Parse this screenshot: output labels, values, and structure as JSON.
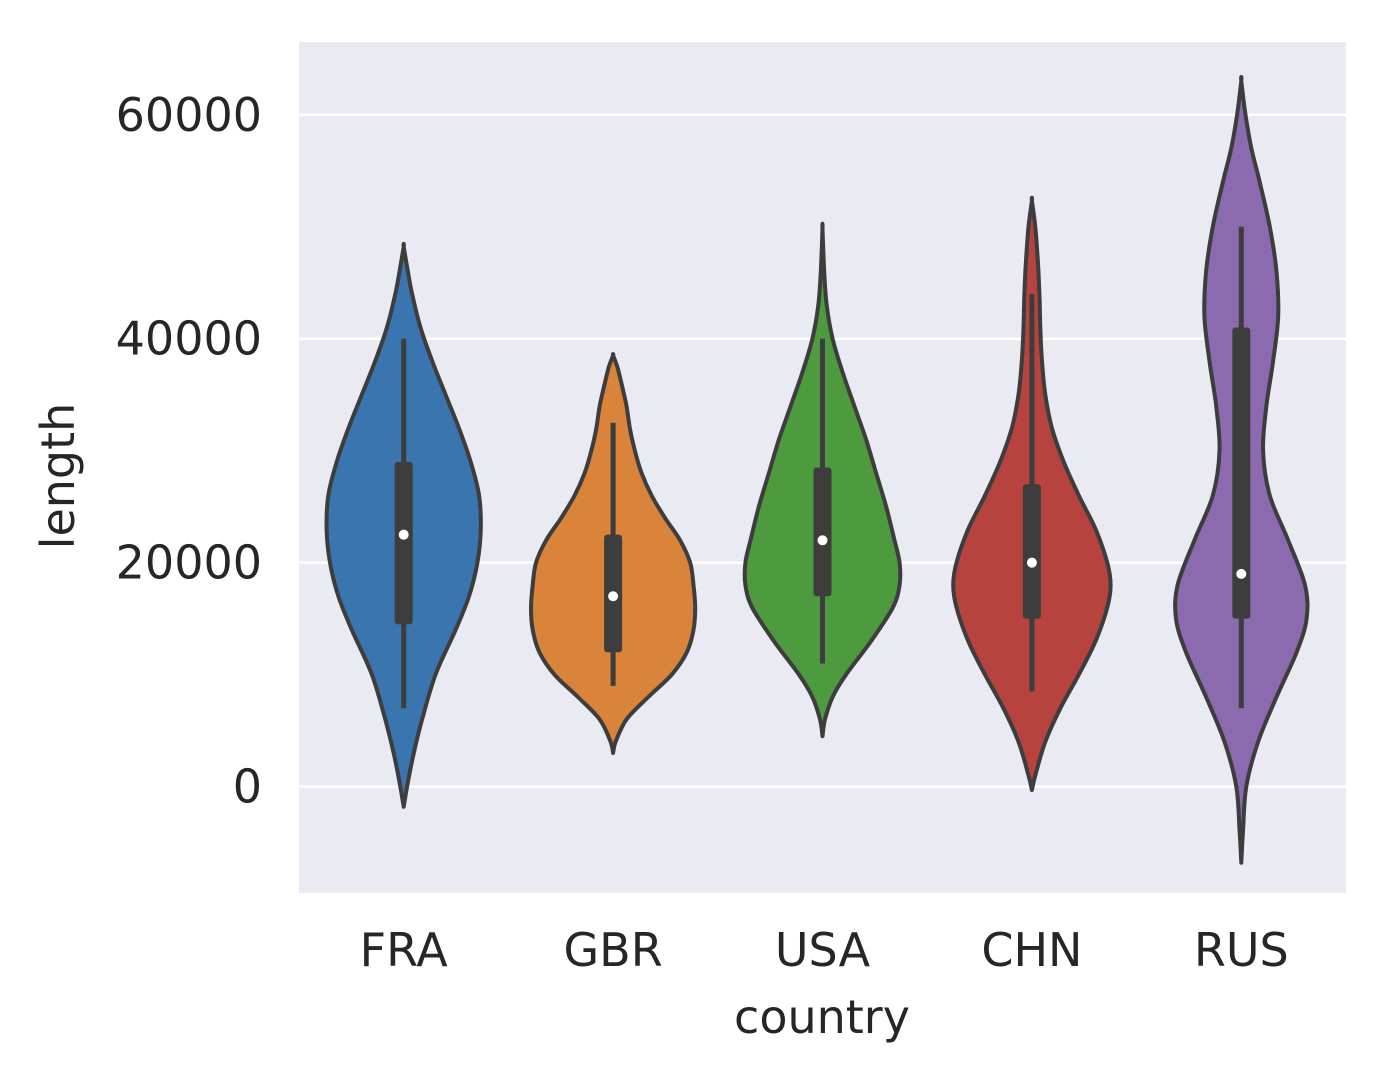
{
  "chart_data": {
    "type": "violin",
    "xlabel": "country",
    "ylabel": "length",
    "categories": [
      "FRA",
      "GBR",
      "USA",
      "CHN",
      "RUS"
    ],
    "y_ticks": [
      0,
      20000,
      40000,
      60000
    ],
    "ylim": [
      -9500,
      66500
    ],
    "grid": true,
    "background": "#eaeaf2",
    "grid_color": "#ffffff",
    "line_color": "#3d3d3d",
    "colors": [
      "#3a75af",
      "#d9843a",
      "#4e9a3e",
      "#b7433e",
      "#8b6aaf"
    ],
    "violins": [
      {
        "name": "FRA",
        "min": -1800,
        "max": 48200,
        "median": 22500,
        "q1": 14500,
        "q3": 29000,
        "whisker_low": 7000,
        "whisker_high": 40000,
        "density": [
          [
            -1800,
            0
          ],
          [
            0,
            0.04
          ],
          [
            3000,
            0.12
          ],
          [
            6000,
            0.22
          ],
          [
            10000,
            0.38
          ],
          [
            14000,
            0.62
          ],
          [
            17000,
            0.78
          ],
          [
            20000,
            0.88
          ],
          [
            23000,
            0.92
          ],
          [
            26000,
            0.9
          ],
          [
            29000,
            0.8
          ],
          [
            32000,
            0.66
          ],
          [
            35000,
            0.5
          ],
          [
            38000,
            0.34
          ],
          [
            41000,
            0.2
          ],
          [
            44000,
            0.1
          ],
          [
            46000,
            0.05
          ],
          [
            48200,
            0
          ]
        ]
      },
      {
        "name": "GBR",
        "min": 3000,
        "max": 38500,
        "median": 17000,
        "q1": 12000,
        "q3": 22500,
        "whisker_low": 9000,
        "whisker_high": 32500,
        "density": [
          [
            3000,
            0
          ],
          [
            4000,
            0.03
          ],
          [
            6000,
            0.16
          ],
          [
            8000,
            0.42
          ],
          [
            10000,
            0.7
          ],
          [
            12000,
            0.88
          ],
          [
            14000,
            0.96
          ],
          [
            16000,
            0.98
          ],
          [
            18000,
            0.96
          ],
          [
            20000,
            0.92
          ],
          [
            22000,
            0.8
          ],
          [
            24000,
            0.62
          ],
          [
            26000,
            0.46
          ],
          [
            28000,
            0.34
          ],
          [
            30000,
            0.26
          ],
          [
            32000,
            0.2
          ],
          [
            34000,
            0.16
          ],
          [
            36000,
            0.1
          ],
          [
            37500,
            0.05
          ],
          [
            38500,
            0
          ]
        ]
      },
      {
        "name": "USA",
        "min": 4500,
        "max": 49800,
        "median": 22000,
        "q1": 17000,
        "q3": 28500,
        "whisker_low": 11000,
        "whisker_high": 40000,
        "density": [
          [
            4500,
            0
          ],
          [
            6000,
            0.03
          ],
          [
            8000,
            0.12
          ],
          [
            10000,
            0.28
          ],
          [
            13000,
            0.58
          ],
          [
            16000,
            0.84
          ],
          [
            18000,
            0.92
          ],
          [
            20000,
            0.92
          ],
          [
            22000,
            0.86
          ],
          [
            25000,
            0.76
          ],
          [
            28000,
            0.64
          ],
          [
            31000,
            0.52
          ],
          [
            34000,
            0.38
          ],
          [
            37000,
            0.24
          ],
          [
            40000,
            0.12
          ],
          [
            43000,
            0.05
          ],
          [
            46000,
            0.02
          ],
          [
            49800,
            0
          ]
        ]
      },
      {
        "name": "CHN",
        "min": -300,
        "max": 52300,
        "median": 20000,
        "q1": 15000,
        "q3": 27000,
        "whisker_low": 8500,
        "whisker_high": 44000,
        "density": [
          [
            -300,
            0
          ],
          [
            1000,
            0.04
          ],
          [
            4000,
            0.16
          ],
          [
            7000,
            0.34
          ],
          [
            10000,
            0.56
          ],
          [
            13000,
            0.76
          ],
          [
            16000,
            0.9
          ],
          [
            18000,
            0.94
          ],
          [
            20000,
            0.9
          ],
          [
            23000,
            0.76
          ],
          [
            26000,
            0.56
          ],
          [
            29000,
            0.38
          ],
          [
            32000,
            0.24
          ],
          [
            35000,
            0.16
          ],
          [
            38000,
            0.12
          ],
          [
            41000,
            0.1
          ],
          [
            44000,
            0.09
          ],
          [
            47000,
            0.07
          ],
          [
            50000,
            0.04
          ],
          [
            52300,
            0
          ]
        ]
      },
      {
        "name": "RUS",
        "min": -6800,
        "max": 63000,
        "median": 19000,
        "q1": 15000,
        "q3": 41000,
        "whisker_low": 7000,
        "whisker_high": 50000,
        "density": [
          [
            -6800,
            0
          ],
          [
            -4000,
            0.02
          ],
          [
            0,
            0.06
          ],
          [
            4000,
            0.2
          ],
          [
            8000,
            0.42
          ],
          [
            12000,
            0.66
          ],
          [
            15000,
            0.78
          ],
          [
            18000,
            0.76
          ],
          [
            22000,
            0.56
          ],
          [
            26000,
            0.34
          ],
          [
            30000,
            0.26
          ],
          [
            34000,
            0.3
          ],
          [
            38000,
            0.38
          ],
          [
            42000,
            0.44
          ],
          [
            46000,
            0.42
          ],
          [
            50000,
            0.34
          ],
          [
            54000,
            0.22
          ],
          [
            57000,
            0.12
          ],
          [
            60000,
            0.05
          ],
          [
            63000,
            0
          ]
        ]
      }
    ]
  }
}
